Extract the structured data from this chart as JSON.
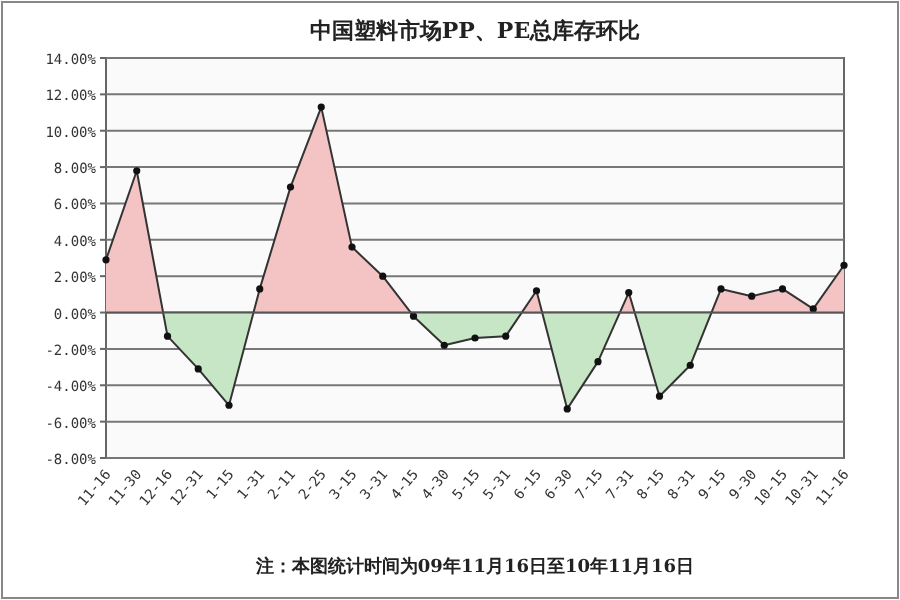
{
  "chart_data": {
    "type": "area",
    "title": "中国塑料市场PP、PE总库存环比",
    "categories": [
      "11-16",
      "11-30",
      "12-16",
      "12-31",
      "1-15",
      "1-31",
      "2-11",
      "2-25",
      "3-15",
      "3-31",
      "4-15",
      "4-30",
      "5-15",
      "5-31",
      "6-15",
      "6-30",
      "7-15",
      "7-31",
      "8-15",
      "8-31",
      "9-15",
      "9-30",
      "10-15",
      "10-31",
      "11-16"
    ],
    "series": [
      {
        "color": "#333333",
        "values": [
          2.9,
          7.8,
          -1.3,
          -3.1,
          -5.1,
          1.3,
          6.9,
          11.3,
          3.6,
          2.0,
          -0.2,
          -1.8,
          -1.4,
          -1.3,
          1.2,
          -5.3,
          -2.7,
          1.1,
          -4.6,
          -2.9,
          1.3,
          0.9,
          1.3,
          0.2,
          2.6
        ],
        "colors": [
          "#f4c4c4",
          "#f4c4c4",
          "#c6e6c6",
          "#c6e6c6",
          "#c6e6c6",
          "#f4c4c4",
          "#f4c4c4",
          "#f4c4c4",
          "#f4c4c4",
          "#f4c4c4",
          "#c6e6c6",
          "#c6e6c6",
          "#c6e6c6",
          "#c6e6c6",
          "#f4c4c4",
          "#c6e6c6",
          "#c6e6c6",
          "#f4c4c4",
          "#c6e6c6",
          "#c6e6c6",
          "#f4c4c4",
          "#f4c4c4",
          "#f4c4c4",
          "#f4c4c4",
          "#f4c4c4"
        ]
      }
    ],
    "ylim": [
      -8,
      14
    ],
    "yticks": [
      {
        "value": -8,
        "label": "-8.00%"
      },
      {
        "value": -6,
        "label": "-6.00%"
      },
      {
        "value": -4,
        "label": "-4.00%"
      },
      {
        "value": -2,
        "label": "-2.00%"
      },
      {
        "value": 0,
        "label": "0.00%"
      },
      {
        "value": 2,
        "label": "2.00%"
      },
      {
        "value": 4,
        "label": "4.00%"
      },
      {
        "value": 6,
        "label": "6.00%"
      },
      {
        "value": 8,
        "label": "8.00%"
      },
      {
        "value": 10,
        "label": "10.00%"
      },
      {
        "value": 12,
        "label": "12.00%"
      },
      {
        "value": 14,
        "label": "14.00%"
      }
    ],
    "grid": "y",
    "marker": "circle",
    "annotations": [
      "注：本图统计时间为09年11月16日至10年11月16日"
    ]
  }
}
